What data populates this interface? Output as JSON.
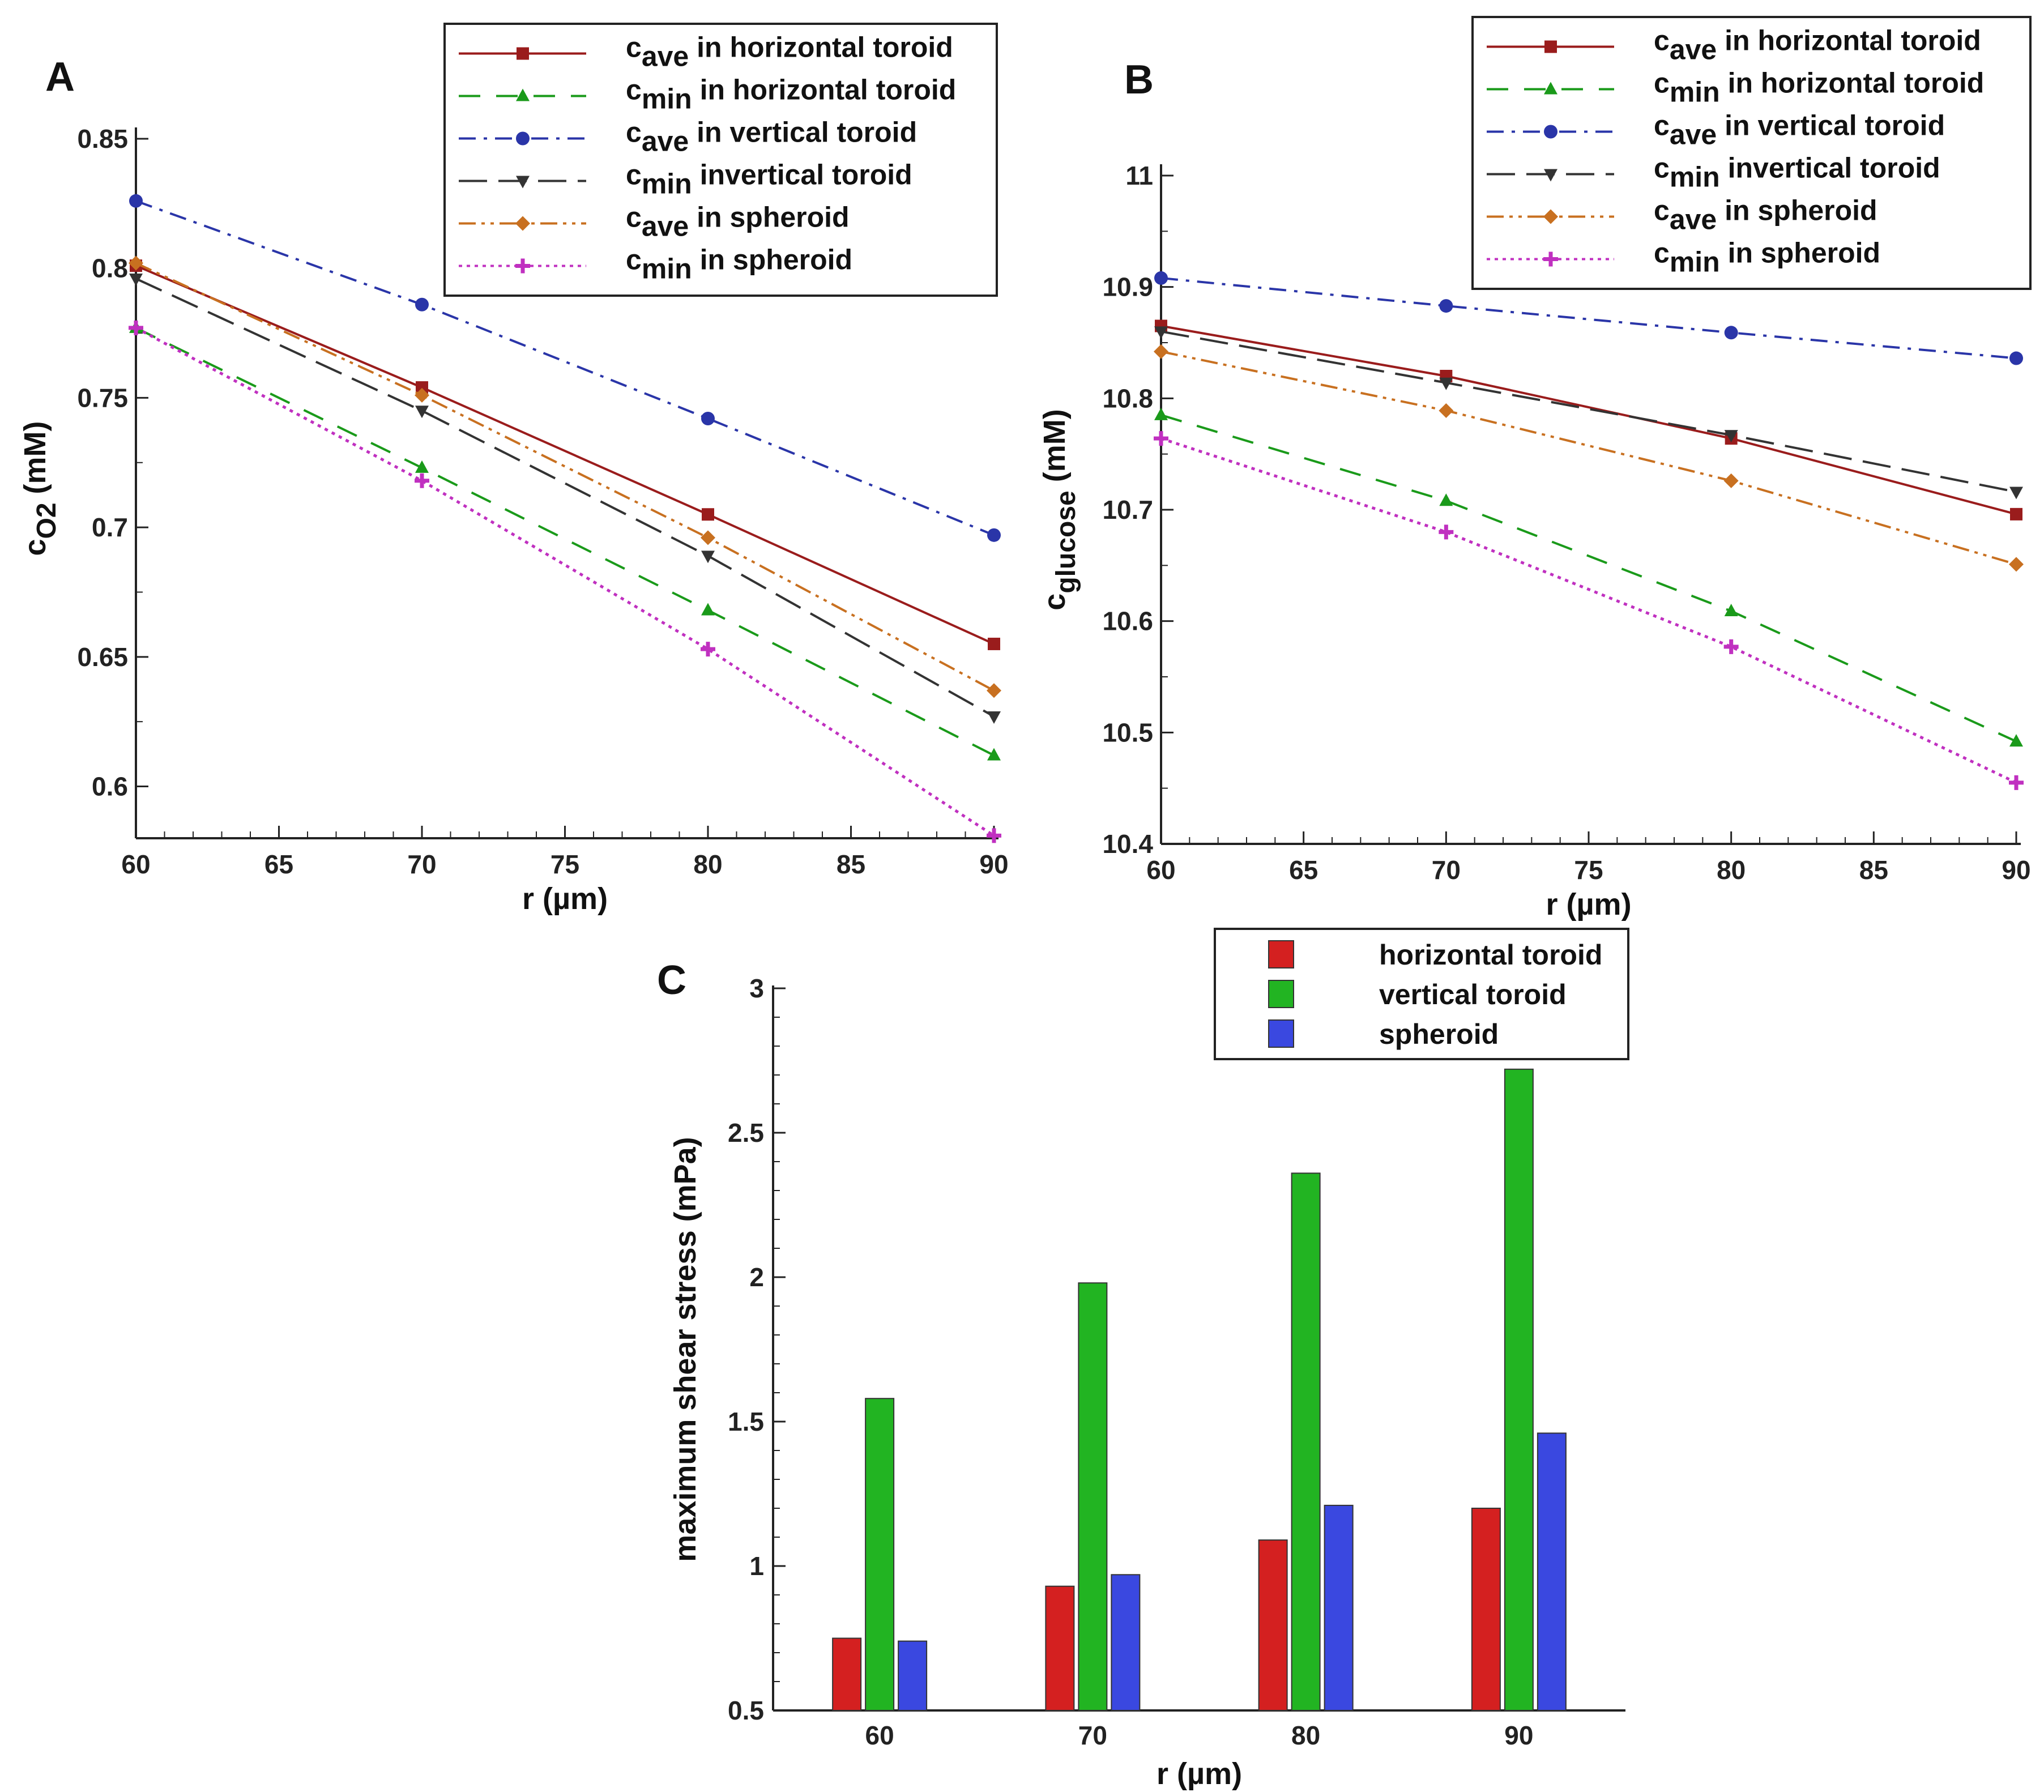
{
  "panels": {
    "a": "A",
    "b": "B",
    "c": "C"
  },
  "chart_data": [
    {
      "id": "A",
      "type": "line",
      "ylabel": "c_O2 (mM)",
      "ylabel_main": "c",
      "ylabel_sub": "O2",
      "ylabel_unit": "(mM)",
      "xlabel": "r (µm)",
      "xlim": [
        60,
        90
      ],
      "ylim": [
        0.58,
        0.85
      ],
      "xticks": [
        60,
        65,
        70,
        75,
        80,
        85,
        90
      ],
      "xtick_labels": [
        "60",
        "65",
        "70",
        "75",
        "80",
        "85",
        "90"
      ],
      "yticks": [
        0.6,
        0.65,
        0.7,
        0.75,
        0.8,
        0.85
      ],
      "ytick_labels": [
        "0.6",
        "0.65",
        "0.7",
        "0.75",
        "0.8",
        "0.85"
      ],
      "x": [
        60,
        70,
        80,
        90
      ],
      "legend_position": "top-right",
      "series": [
        {
          "name": "c_ave in horizontal toroid",
          "label_main": "c",
          "label_sub": "ave",
          "label_rest": " in horizontal toroid",
          "color": "#9a1c1c",
          "dash": "",
          "marker": "square",
          "values": [
            0.801,
            0.754,
            0.705,
            0.655
          ]
        },
        {
          "name": "c_min in horizontal toroid",
          "label_main": "c",
          "label_sub": "min",
          "label_rest": " in horizontal toroid",
          "color": "#1a9a1a",
          "dash": "38,28",
          "marker": "triangle",
          "values": [
            0.777,
            0.723,
            0.668,
            0.612
          ]
        },
        {
          "name": "c_ave in vertical toroid",
          "label_main": "c",
          "label_sub": "ave",
          "label_rest": " in vertical toroid",
          "color": "#2a35a8",
          "dash": "30,14,6,14",
          "marker": "circle",
          "values": [
            0.826,
            0.786,
            0.742,
            0.697
          ]
        },
        {
          "name": "c_min invertical toroid",
          "label_main": "c",
          "label_sub": "min",
          "label_rest": " invertical toroid",
          "color": "#333333",
          "dash": "50,20",
          "marker": "triangle-down",
          "values": [
            0.796,
            0.745,
            0.689,
            0.627
          ]
        },
        {
          "name": "c_ave in spheroid",
          "label_main": "c",
          "label_sub": "ave",
          "label_rest": " in spheroid",
          "color": "#c87020",
          "dash": "30,10,6,10,6,10",
          "marker": "diamond",
          "values": [
            0.802,
            0.751,
            0.696,
            0.637
          ]
        },
        {
          "name": "c_min in spheroid",
          "label_main": "c",
          "label_sub": "min",
          "label_rest": " in spheroid",
          "color": "#c030c0",
          "dash": "6,8",
          "marker": "plus",
          "values": [
            0.777,
            0.718,
            0.653,
            0.581
          ]
        }
      ]
    },
    {
      "id": "B",
      "type": "line",
      "ylabel": "c_glucose (mM)",
      "ylabel_main": "c",
      "ylabel_sub": "glucose",
      "ylabel_unit": "(mM)",
      "xlabel": "r (µm)",
      "xlim": [
        60,
        90
      ],
      "ylim": [
        10.4,
        11
      ],
      "xticks": [
        60,
        65,
        70,
        75,
        80,
        85,
        90
      ],
      "xtick_labels": [
        "60",
        "65",
        "70",
        "75",
        "80",
        "85",
        "90"
      ],
      "yticks": [
        10.4,
        10.5,
        10.6,
        10.7,
        10.8,
        10.9,
        11
      ],
      "ytick_labels": [
        "10.4",
        "10.5",
        "10.6",
        "10.7",
        "10.8",
        "10.9",
        "11"
      ],
      "x": [
        60,
        70,
        80,
        90
      ],
      "legend_position": "top-right",
      "series": [
        {
          "name": "c_ave in horizontal toroid",
          "label_main": "c",
          "label_sub": "ave",
          "label_rest": " in horizontal toroid",
          "color": "#9a1c1c",
          "dash": "",
          "marker": "square",
          "values": [
            10.865,
            10.82,
            10.764,
            10.696
          ]
        },
        {
          "name": "c_min in horizontal toroid",
          "label_main": "c",
          "label_sub": "min",
          "label_rest": " in horizontal toroid",
          "color": "#1a9a1a",
          "dash": "38,28",
          "marker": "triangle",
          "values": [
            10.785,
            10.708,
            10.609,
            10.492
          ]
        },
        {
          "name": "c_ave in vertical toroid",
          "label_main": "c",
          "label_sub": "ave",
          "label_rest": " in vertical toroid",
          "color": "#2a35a8",
          "dash": "30,14,6,14",
          "marker": "circle",
          "values": [
            10.908,
            10.883,
            10.859,
            10.836
          ]
        },
        {
          "name": "c_min invertical toroid",
          "label_main": "c",
          "label_sub": "min",
          "label_rest": " invertical toroid",
          "color": "#333333",
          "dash": "50,20",
          "marker": "triangle-down",
          "values": [
            10.86,
            10.814,
            10.767,
            10.716
          ]
        },
        {
          "name": "c_ave in spheroid",
          "label_main": "c",
          "label_sub": "ave",
          "label_rest": " in spheroid",
          "color": "#c87020",
          "dash": "30,10,6,10,6,10",
          "marker": "diamond",
          "values": [
            10.842,
            10.789,
            10.726,
            10.651
          ]
        },
        {
          "name": "c_min in spheroid",
          "label_main": "c",
          "label_sub": "min",
          "label_rest": " in spheroid",
          "color": "#c030c0",
          "dash": "6,8",
          "marker": "plus",
          "values": [
            10.764,
            10.68,
            10.577,
            10.455
          ]
        }
      ]
    },
    {
      "id": "C",
      "type": "bar",
      "ylabel": "maximum shear stress (mPa)",
      "xlabel": "r (µm)",
      "ylim": [
        0.5,
        3
      ],
      "yticks": [
        0.5,
        1,
        1.5,
        2,
        2.5,
        3
      ],
      "ytick_labels": [
        "0.5",
        "1",
        "1.5",
        "2",
        "2.5",
        "3"
      ],
      "categories": [
        "60",
        "70",
        "80",
        "90"
      ],
      "legend_position": "top-right",
      "series": [
        {
          "name": "horizontal toroid",
          "color": "#d42020",
          "values": [
            0.75,
            0.93,
            1.09,
            1.2
          ]
        },
        {
          "name": "vertical toroid",
          "color": "#22b422",
          "values": [
            1.58,
            1.98,
            2.36,
            2.72
          ]
        },
        {
          "name": "spheroid",
          "color": "#3a48e0",
          "values": [
            0.74,
            0.97,
            1.21,
            1.46
          ]
        }
      ]
    }
  ]
}
